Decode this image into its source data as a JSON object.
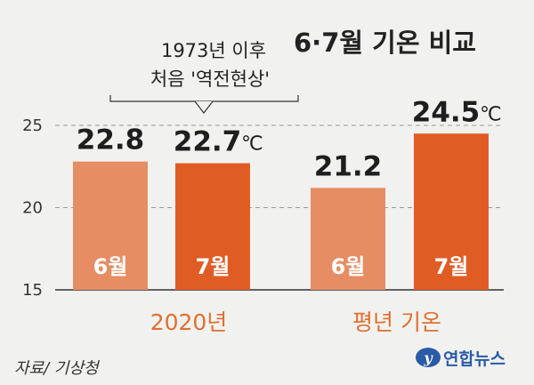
{
  "title": "6·7월 기온 비교",
  "annotation": {
    "line1": "1973년 이후",
    "line2": "처음 '역전현상'"
  },
  "source": "자료/ 기상청",
  "logo": {
    "text": "연합뉴스",
    "mark": "y"
  },
  "colors": {
    "light": "#e68d64",
    "dark": "#e05c25",
    "group_label": "#e07030",
    "background": "#f1f2ef"
  },
  "chart_data": {
    "type": "bar",
    "ylim": [
      15,
      27
    ],
    "yticks": [
      15,
      20,
      25
    ],
    "grid": true,
    "unit": "℃",
    "groups": [
      {
        "name": "2020년",
        "bars": [
          {
            "label": "6월",
            "value": 22.8,
            "display": "22.8"
          },
          {
            "label": "7월",
            "value": 22.7,
            "display": "22.7"
          }
        ]
      },
      {
        "name": "평년 기온",
        "bars": [
          {
            "label": "6월",
            "value": 21.2,
            "display": "21.2"
          },
          {
            "label": "7월",
            "value": 24.5,
            "display": "24.5"
          }
        ]
      }
    ]
  }
}
